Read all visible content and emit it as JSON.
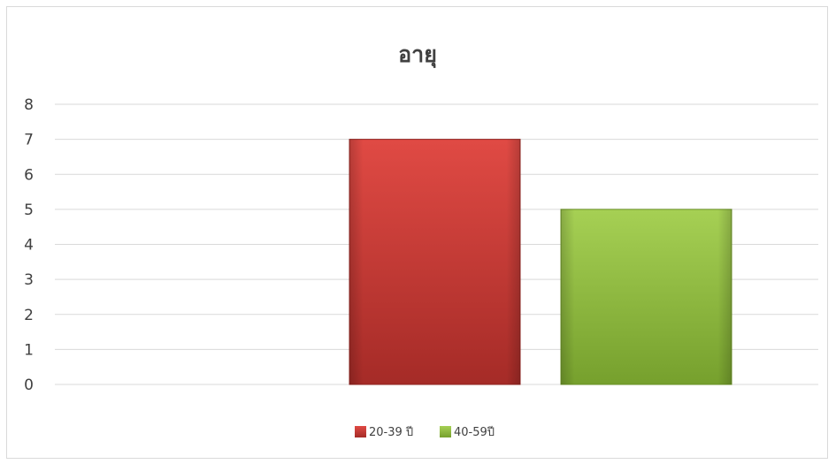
{
  "chart_data": {
    "type": "bar",
    "title": "อายุ",
    "xlabel": "",
    "ylabel": "",
    "ylim": [
      0,
      8
    ],
    "yticks": [
      0,
      1,
      2,
      3,
      4,
      5,
      6,
      7,
      8
    ],
    "grid": true,
    "legend_position": "bottom",
    "categories": [
      ""
    ],
    "series": [
      {
        "name": "20-39 ปี",
        "values": [
          7
        ],
        "color": "#c0392b"
      },
      {
        "name": "40-59ปี",
        "values": [
          5
        ],
        "color": "#8bb83a"
      }
    ],
    "colors": {
      "gridline": "#d9d9d9",
      "text": "#404040"
    }
  }
}
